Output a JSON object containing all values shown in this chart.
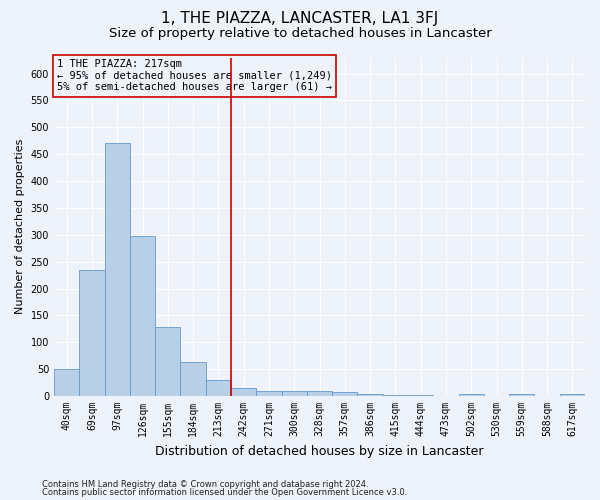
{
  "title": "1, THE PIAZZA, LANCASTER, LA1 3FJ",
  "subtitle": "Size of property relative to detached houses in Lancaster",
  "xlabel": "Distribution of detached houses by size in Lancaster",
  "ylabel": "Number of detached properties",
  "categories": [
    "40sqm",
    "69sqm",
    "97sqm",
    "126sqm",
    "155sqm",
    "184sqm",
    "213sqm",
    "242sqm",
    "271sqm",
    "300sqm",
    "328sqm",
    "357sqm",
    "386sqm",
    "415sqm",
    "444sqm",
    "473sqm",
    "502sqm",
    "530sqm",
    "559sqm",
    "588sqm",
    "617sqm"
  ],
  "values": [
    50,
    235,
    470,
    298,
    128,
    63,
    30,
    15,
    9,
    9,
    10,
    7,
    4,
    2,
    2,
    0,
    4,
    0,
    3,
    0,
    3
  ],
  "bar_color": "#b8cfe8",
  "bar_edge_color": "#6699cc",
  "vline_x_index": 6,
  "vline_color": "#cc0000",
  "ylim": [
    0,
    630
  ],
  "yticks": [
    0,
    50,
    100,
    150,
    200,
    250,
    300,
    350,
    400,
    450,
    500,
    550,
    600
  ],
  "annotation_line1": "1 THE PIAZZA: 217sqm",
  "annotation_line2": "← 95% of detached houses are smaller (1,249)",
  "annotation_line3": "5% of semi-detached houses are larger (61) →",
  "annotation_box_color": "#cc0000",
  "footer1": "Contains HM Land Registry data © Crown copyright and database right 2024.",
  "footer2": "Contains public sector information licensed under the Open Government Licence v3.0.",
  "background_color": "#eef2fb",
  "grid_color": "#ffffff",
  "title_fontsize": 11,
  "subtitle_fontsize": 9.5,
  "ylabel_fontsize": 8,
  "xlabel_fontsize": 9,
  "tick_fontsize": 7,
  "footer_fontsize": 6,
  "annotation_fontsize": 7.5
}
